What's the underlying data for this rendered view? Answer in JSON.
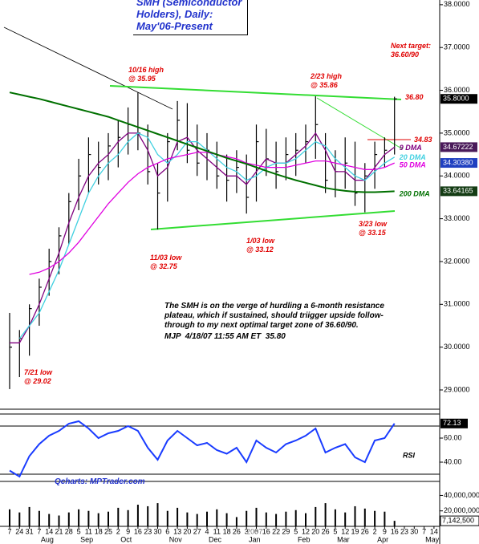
{
  "chart_data": {
    "type": "ohlc",
    "title": "SMH (Semiconductor Holders), Daily: May'06-Present",
    "categories": [
      "7",
      "24",
      "31",
      "7",
      "14",
      "21",
      "28",
      "5",
      "11",
      "18",
      "25",
      "2",
      "9",
      "16",
      "23",
      "30",
      "6",
      "13",
      "20",
      "27",
      "4",
      "11",
      "18",
      "26",
      "3",
      "8",
      "16",
      "22",
      "29",
      "5",
      "12",
      "20",
      "26",
      "5",
      "12",
      "19",
      "26",
      "2",
      "9",
      "16",
      "23",
      "30",
      "7",
      "14"
    ],
    "month_labels": [
      null,
      null,
      null,
      "Aug",
      null,
      null,
      null,
      "Sep",
      null,
      null,
      null,
      "Oct",
      null,
      null,
      null,
      null,
      "Nov",
      null,
      null,
      null,
      "Dec",
      null,
      null,
      null,
      "Jan",
      null,
      null,
      null,
      null,
      "Feb",
      null,
      null,
      null,
      "Mar",
      null,
      null,
      null,
      "Apr",
      null,
      null,
      null,
      null,
      "May",
      null
    ],
    "year_label": "2007",
    "high": [
      30.8,
      30.4,
      31.0,
      31.6,
      32.3,
      32.8,
      33.6,
      34.4,
      34.9,
      34.8,
      35.0,
      35.3,
      35.6,
      35.95,
      35.2,
      34.3,
      35.0,
      35.75,
      35.7,
      35.2,
      35.0,
      34.8,
      34.5,
      34.6,
      34.5,
      35.2,
      35.1,
      34.8,
      34.9,
      35.0,
      35.2,
      35.86,
      35.0,
      34.6,
      34.9,
      34.8,
      34.3,
      34.8,
      34.9,
      35.85,
      null,
      null,
      null,
      null
    ],
    "low": [
      29.02,
      29.3,
      29.8,
      30.5,
      31.2,
      31.7,
      32.4,
      33.2,
      33.6,
      33.8,
      33.9,
      34.2,
      34.5,
      34.6,
      33.8,
      32.75,
      33.4,
      34.6,
      34.3,
      34.0,
      33.9,
      33.7,
      33.4,
      33.6,
      33.12,
      33.4,
      34.0,
      33.7,
      33.9,
      34.0,
      34.3,
      34.4,
      33.6,
      33.5,
      33.7,
      33.3,
      33.15,
      33.7,
      34.2,
      34.5,
      null,
      null,
      null,
      null
    ],
    "close": [
      30.0,
      30.2,
      30.9,
      31.4,
      32.0,
      32.6,
      33.4,
      34.0,
      34.5,
      34.2,
      34.7,
      34.9,
      35.2,
      35.0,
      34.1,
      33.6,
      34.8,
      35.3,
      34.6,
      34.3,
      34.6,
      34.0,
      33.9,
      34.2,
      33.5,
      34.8,
      34.4,
      34.1,
      34.5,
      34.6,
      34.8,
      35.2,
      33.9,
      34.1,
      34.3,
      33.6,
      34.0,
      34.5,
      34.6,
      35.8,
      null,
      null,
      null,
      null
    ],
    "color": "#000000",
    "ylim": [
      28.55,
      38.11
    ],
    "yticks": [
      {
        "value": 38,
        "label": "38.0000"
      },
      {
        "value": 37,
        "label": "37.0000"
      },
      {
        "value": 36,
        "label": "36.0000"
      },
      {
        "value": 35,
        "label": "35.0000"
      },
      {
        "value": 34,
        "label": "34.0000"
      },
      {
        "value": 33,
        "label": "33.0000"
      },
      {
        "value": 32,
        "label": "32.0000"
      },
      {
        "value": 31,
        "label": "31.0000"
      },
      {
        "value": 30,
        "label": "30.0000"
      },
      {
        "value": 29,
        "label": "29.0000"
      }
    ],
    "price_labels": [
      {
        "value": 35.8,
        "label": "35.8000",
        "color": "#000000"
      },
      {
        "value": 34.67222,
        "label": "34.67222",
        "color": "#4a1a5a"
      },
      {
        "value": 34.3038,
        "label": "34.30380",
        "color": "#2040c0"
      },
      {
        "value": 33.64165,
        "label": "33.64165",
        "color": "#143c14"
      }
    ],
    "averages": [
      {
        "name": "9 DMA",
        "color": "#800080",
        "values": [
          30.1,
          30.1,
          30.5,
          31.0,
          31.6,
          32.2,
          32.9,
          33.5,
          34.0,
          34.3,
          34.5,
          34.8,
          35.0,
          35.0,
          34.6,
          34.0,
          34.2,
          34.8,
          34.9,
          34.6,
          34.4,
          34.2,
          34.0,
          34.0,
          33.8,
          34.1,
          34.4,
          34.3,
          34.3,
          34.5,
          34.7,
          35.0,
          34.6,
          34.1,
          34.1,
          33.9,
          33.9,
          34.2,
          34.5,
          34.67222,
          null,
          null,
          null,
          null
        ]
      },
      {
        "name": "20 DMA",
        "color": "#40d0e0",
        "values": [
          null,
          30.2,
          30.5,
          30.8,
          31.3,
          31.8,
          32.4,
          33.0,
          33.6,
          34.0,
          34.3,
          34.5,
          34.8,
          35.0,
          34.9,
          34.5,
          34.3,
          34.5,
          34.8,
          34.8,
          34.6,
          34.4,
          34.2,
          34.1,
          33.9,
          34.0,
          34.2,
          34.3,
          34.3,
          34.4,
          34.6,
          34.8,
          34.7,
          34.4,
          34.2,
          34.0,
          33.9,
          34.1,
          34.3,
          34.44,
          null,
          null,
          null,
          null
        ]
      },
      {
        "name": "50 DMA",
        "color": "#e000e0",
        "values": [
          null,
          null,
          31.7,
          31.75,
          31.85,
          32.0,
          32.2,
          32.45,
          32.75,
          33.05,
          33.35,
          33.6,
          33.85,
          34.05,
          34.2,
          34.3,
          34.4,
          34.45,
          34.5,
          34.55,
          34.55,
          34.5,
          34.45,
          34.4,
          34.3,
          34.25,
          34.2,
          34.2,
          34.2,
          34.25,
          34.3,
          34.35,
          34.35,
          34.3,
          34.25,
          34.2,
          34.15,
          34.15,
          34.2,
          34.3038,
          null,
          null,
          null,
          null
        ]
      },
      {
        "name": "200 DMA",
        "color": "#007000",
        "values": [
          35.95,
          35.9,
          35.85,
          35.8,
          35.74,
          35.68,
          35.62,
          35.56,
          35.5,
          35.44,
          35.38,
          35.3,
          35.22,
          35.14,
          35.06,
          34.98,
          34.9,
          34.82,
          34.74,
          34.66,
          34.58,
          34.5,
          34.42,
          34.35,
          34.28,
          34.2,
          34.12,
          34.04,
          33.97,
          33.9,
          33.84,
          33.78,
          33.72,
          33.68,
          33.65,
          33.63,
          33.62,
          33.62,
          33.63,
          33.64165,
          null,
          null,
          null,
          null
        ]
      }
    ],
    "annotations": [
      "10/16 high\n@ 35.95",
      "2/23 high\n@ 35.86",
      "11/03 low\n@ 32.75",
      "1/03 low\n@ 33.12",
      "3/23 low\n@ 33.15",
      "7/21 low\n@ 29.02",
      "Next target:\n36.60/90",
      "36.80",
      "34.83"
    ],
    "commentary": "The SMH is on the verge of hurdling a 6-month resistance plateau, which if sustained, should triigger upside follow-through to my next optimal target zone of 36.60/90.",
    "signature": "MJP  4/18/07 11:55 AM ET  35.80",
    "rsi": {
      "name": "RSI",
      "color": "#1a3cff",
      "values": [
        33,
        28,
        45,
        55,
        62,
        66,
        72,
        74,
        68,
        60,
        64,
        66,
        70,
        66,
        52,
        42,
        58,
        66,
        60,
        54,
        56,
        50,
        47,
        52,
        40,
        58,
        52,
        48,
        55,
        58,
        62,
        68,
        48,
        52,
        55,
        44,
        40,
        58,
        60,
        72.13,
        null,
        null,
        null,
        null
      ],
      "ylim": [
        24,
        80
      ],
      "yticks": [
        {
          "value": 60,
          "label": "60.00"
        },
        {
          "value": 40,
          "label": "40.00"
        }
      ],
      "levels": [
        70,
        30
      ]
    },
    "source": "Qcharts: MPTrader.com",
    "volume": {
      "color": "#000000",
      "values": [
        22000000,
        18000000,
        25000000,
        20000000,
        16000000,
        14000000,
        18000000,
        22000000,
        20000000,
        17000000,
        19000000,
        24000000,
        21000000,
        28000000,
        26000000,
        30000000,
        20000000,
        24000000,
        18000000,
        16000000,
        19000000,
        22000000,
        17000000,
        12000000,
        20000000,
        24000000,
        18000000,
        16000000,
        19000000,
        21000000,
        17000000,
        25000000,
        30000000,
        22000000,
        18000000,
        26000000,
        23000000,
        20000000,
        19000000,
        7142500,
        null,
        null,
        null,
        null
      ],
      "ylim": [
        0,
        55000000
      ],
      "yticks": [
        {
          "value": 40000000,
          "label": "40,000,000"
        },
        {
          "value": 20000000,
          "label": "20,000,000"
        }
      ],
      "current": {
        "value": 7142500,
        "label": "7,142,500"
      }
    }
  }
}
